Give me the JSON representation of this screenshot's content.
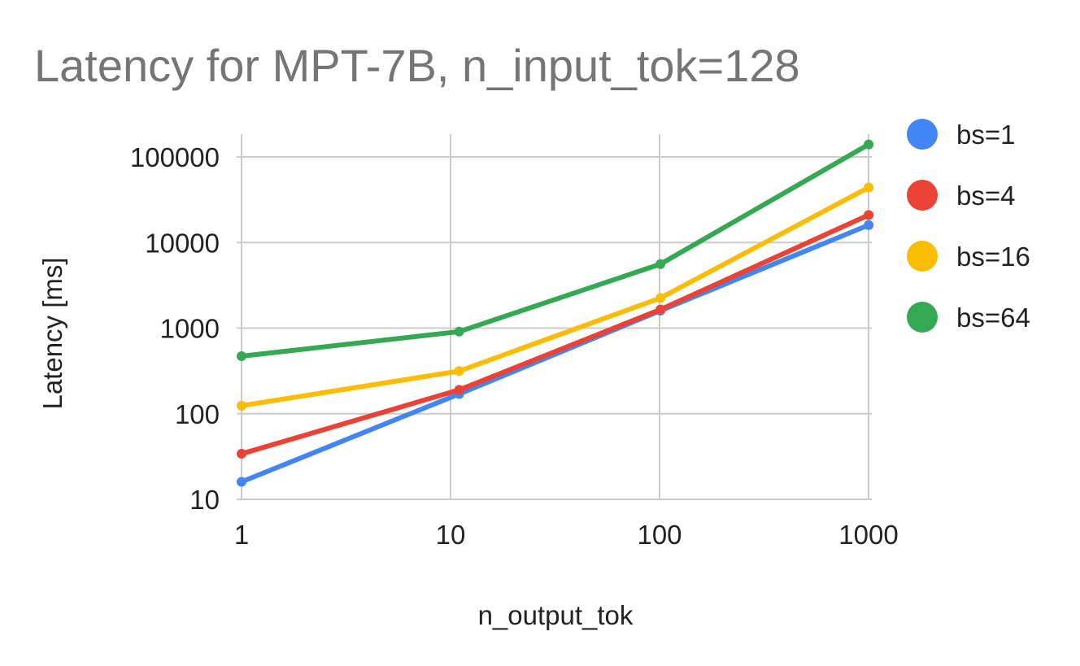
{
  "chart_data": {
    "type": "line",
    "title": "Latency for MPT-7B, n_input_tok=128",
    "xlabel": "n_output_tok",
    "ylabel": "Latency [ms]",
    "xscale": "log",
    "yscale": "log",
    "xlim": [
      1,
      1000
    ],
    "ylim": [
      10,
      160000
    ],
    "grid": true,
    "legend_position": "right",
    "x_ticks": [
      {
        "value": 1,
        "label": "1"
      },
      {
        "value": 10,
        "label": "10"
      },
      {
        "value": 100,
        "label": "100"
      },
      {
        "value": 1000,
        "label": "1000"
      }
    ],
    "y_ticks": [
      {
        "value": 10,
        "label": "10"
      },
      {
        "value": 100,
        "label": "100"
      },
      {
        "value": 1000,
        "label": "1000"
      },
      {
        "value": 10000,
        "label": "10000"
      },
      {
        "value": 100000,
        "label": "100000"
      }
    ],
    "x": [
      1,
      11,
      101,
      1001
    ],
    "series": [
      {
        "name": "bs=1",
        "color": "#4285F4",
        "values": [
          16,
          170,
          1600,
          16000
        ]
      },
      {
        "name": "bs=4",
        "color": "#EA4335",
        "values": [
          34,
          190,
          1650,
          21000
        ]
      },
      {
        "name": "bs=16",
        "color": "#FBBC04",
        "values": [
          124,
          315,
          2250,
          44000
        ]
      },
      {
        "name": "bs=64",
        "color": "#34A853",
        "values": [
          470,
          910,
          5600,
          140000
        ]
      }
    ]
  }
}
